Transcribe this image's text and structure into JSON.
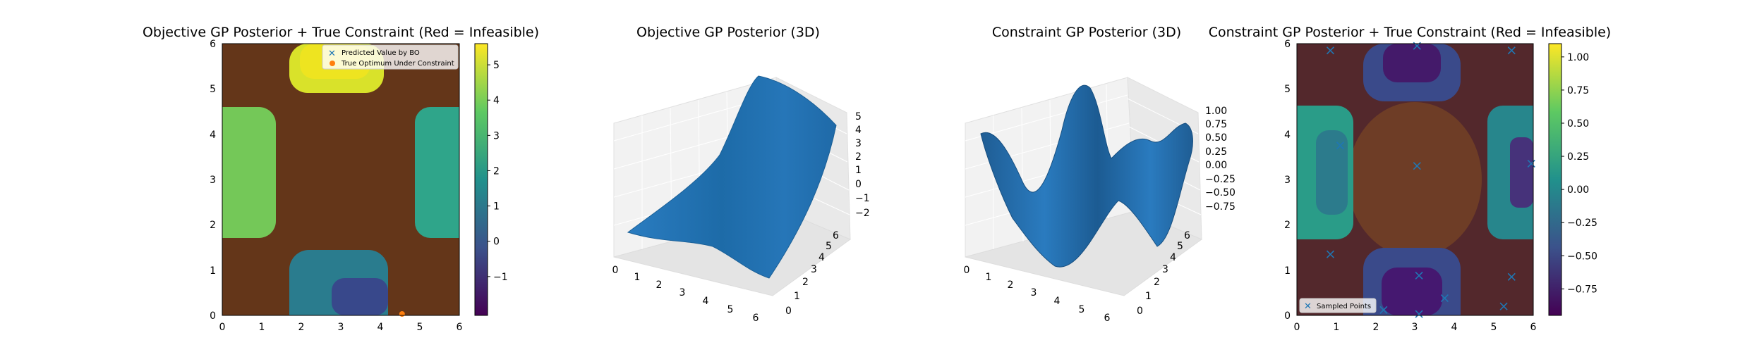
{
  "chart_data": [
    {
      "type": "heatmap",
      "title": "Objective GP Posterior + True Constraint (Red = Infeasible)",
      "xlabel": "",
      "ylabel": "",
      "xlim": [
        0,
        6
      ],
      "ylim": [
        0,
        6
      ],
      "xticks": [
        "0",
        "1",
        "2",
        "3",
        "4",
        "5",
        "6"
      ],
      "yticks": [
        "0",
        "1",
        "2",
        "3",
        "4",
        "5",
        "6"
      ],
      "colormap": "viridis",
      "infeasible_overlay": "red, semi-transparent",
      "colorbar": {
        "min": -2.1,
        "max": 5.6,
        "ticks": [
          "−1",
          "0",
          "1",
          "2",
          "3",
          "4",
          "5"
        ],
        "tick_values": [
          -1,
          0,
          1,
          2,
          3,
          4,
          5
        ]
      },
      "legend": {
        "position": "top-right",
        "entries": [
          {
            "label": "Predicted Value by BO",
            "marker": "x",
            "color": "#1f77b4"
          },
          {
            "label": "True Optimum Under Constraint",
            "marker": "o",
            "color": "#ff7f0e"
          }
        ]
      },
      "points": [
        {
          "series": "True Optimum Under Constraint",
          "x": 4.55,
          "y": 0.0
        }
      ]
    },
    {
      "type": "surface",
      "title": "Objective GP Posterior (3D)",
      "xlim": [
        0,
        6
      ],
      "ylim": [
        0,
        6
      ],
      "zlim": [
        -2,
        5
      ],
      "xticks": [
        "0",
        "1",
        "2",
        "3",
        "4",
        "5",
        "6"
      ],
      "yticks": [
        "0",
        "1",
        "2",
        "3",
        "4",
        "5",
        "6"
      ],
      "zticks": [
        "−2",
        "−1",
        "0",
        "1",
        "2",
        "3",
        "4",
        "5"
      ],
      "color": "#1f77b4"
    },
    {
      "type": "surface",
      "title": "Constraint GP Posterior (3D)",
      "xlim": [
        0,
        6
      ],
      "ylim": [
        0,
        6
      ],
      "zlim": [
        -0.9,
        1.1
      ],
      "xticks": [
        "0",
        "1",
        "2",
        "3",
        "4",
        "5",
        "6"
      ],
      "yticks": [
        "0",
        "1",
        "2",
        "3",
        "4",
        "5",
        "6"
      ],
      "zticks": [
        "−0.75",
        "−0.50",
        "−0.25",
        "0.00",
        "0.25",
        "0.50",
        "0.75",
        "1.00"
      ],
      "color": "#1f77b4"
    },
    {
      "type": "heatmap",
      "title": "Constraint GP Posterior + True Constraint (Red = Infeasible)",
      "xlabel": "",
      "ylabel": "",
      "xlim": [
        0,
        6
      ],
      "ylim": [
        0,
        6
      ],
      "xticks": [
        "0",
        "1",
        "2",
        "3",
        "4",
        "5",
        "6"
      ],
      "yticks": [
        "0",
        "1",
        "2",
        "3",
        "4",
        "5",
        "6"
      ],
      "colormap": "viridis",
      "infeasible_overlay": "red, semi-transparent",
      "colorbar": {
        "min": -0.95,
        "max": 1.1,
        "ticks": [
          "−0.75",
          "−0.50",
          "−0.25",
          "0.00",
          "0.25",
          "0.50",
          "0.75",
          "1.00"
        ],
        "tick_values": [
          -0.75,
          -0.5,
          -0.25,
          0.0,
          0.25,
          0.5,
          0.75,
          1.0
        ]
      },
      "legend": {
        "position": "bottom-left",
        "entries": [
          {
            "label": "Sampled Points",
            "marker": "x",
            "color": "#1f77b4"
          }
        ]
      },
      "points": [
        {
          "x": 0.85,
          "y": 5.85
        },
        {
          "x": 3.05,
          "y": 5.95
        },
        {
          "x": 5.45,
          "y": 5.85
        },
        {
          "x": 1.1,
          "y": 3.75
        },
        {
          "x": 3.05,
          "y": 3.3
        },
        {
          "x": 5.95,
          "y": 3.35
        },
        {
          "x": 0.85,
          "y": 1.35
        },
        {
          "x": 5.45,
          "y": 0.85
        },
        {
          "x": 3.1,
          "y": 0.88
        },
        {
          "x": 3.75,
          "y": 0.38
        },
        {
          "x": 2.2,
          "y": 0.12
        },
        {
          "x": 3.1,
          "y": 0.03
        },
        {
          "x": 5.25,
          "y": 0.2
        }
      ]
    }
  ]
}
